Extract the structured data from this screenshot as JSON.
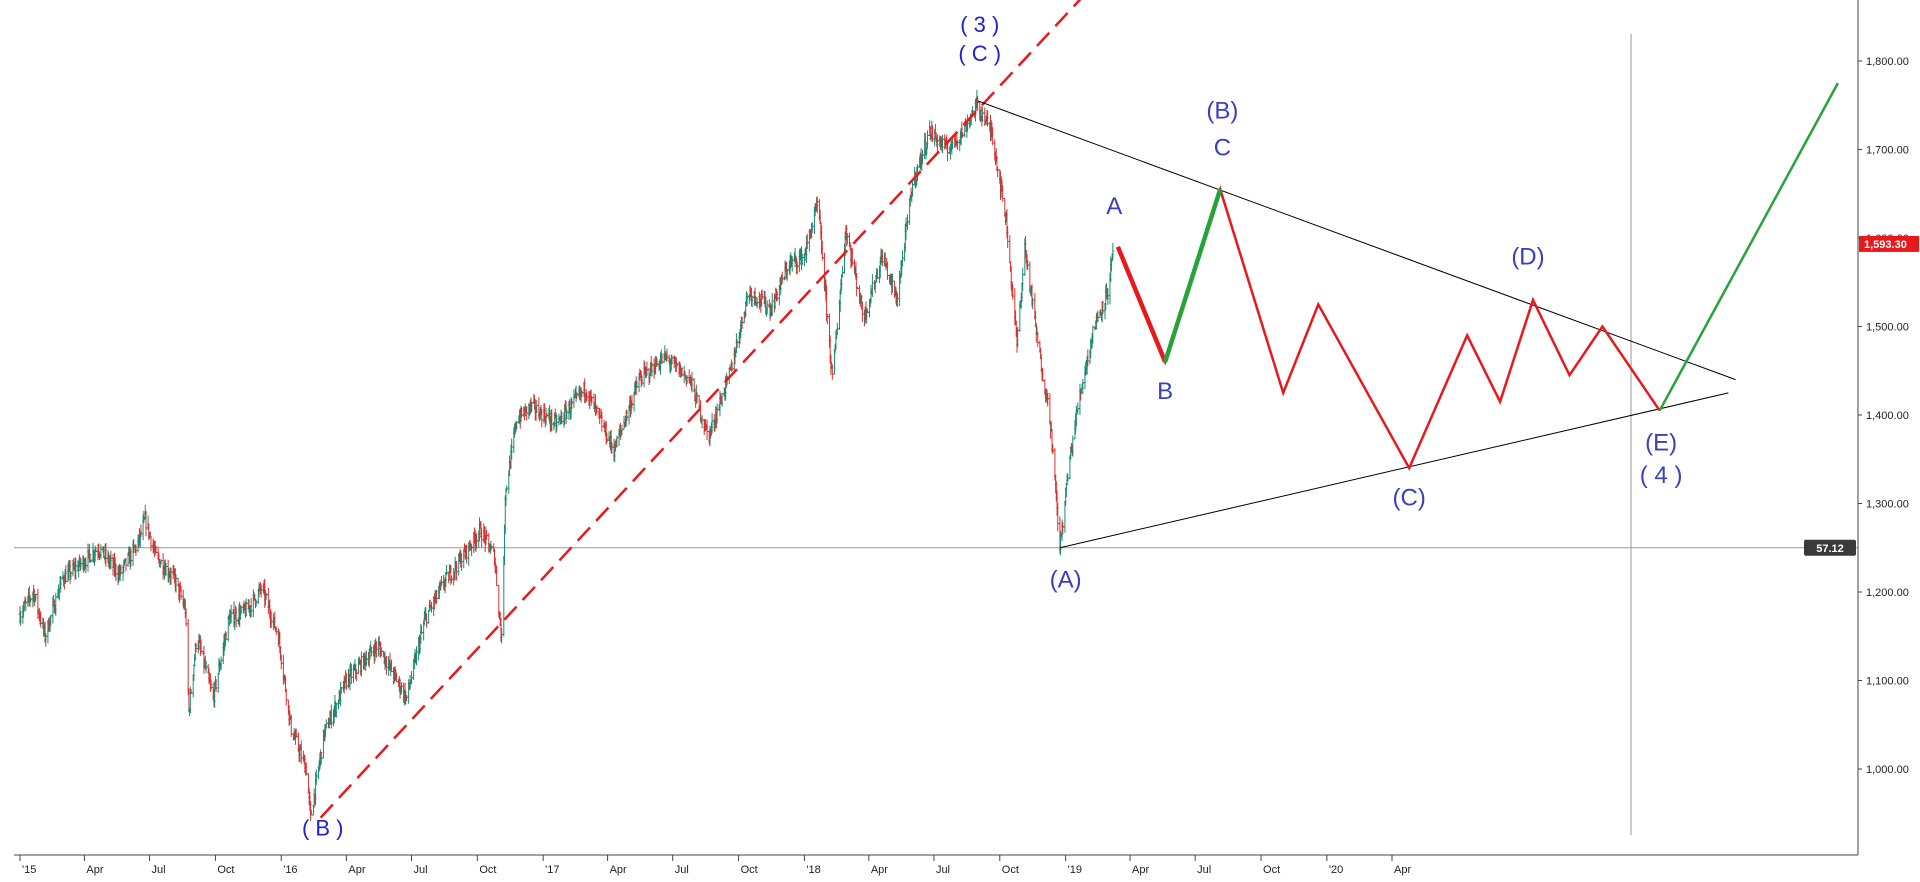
{
  "chart_data": {
    "type": "line",
    "instrument_style": "ohlc-bars",
    "x_range": [
      "2015-01-01",
      "2020-10-31"
    ],
    "ylim": [
      910,
      1900
    ],
    "grid": false,
    "colors": {
      "up": "#1a8a6f",
      "down": "#d93030",
      "forecast_down": "#e8191c",
      "forecast_up": "#27a33a",
      "trendline": "#000000",
      "support": "#e8191c",
      "badge_price": "#e8191c",
      "badge_level": "#3a3a3a",
      "labels": "#3b3fbf"
    },
    "y_ticks": [
      {
        "value": 1000,
        "label": "1,000.00"
      },
      {
        "value": 1100,
        "label": "1,100.00"
      },
      {
        "value": 1200,
        "label": "1,200.00"
      },
      {
        "value": 1300,
        "label": "1,300.00"
      },
      {
        "value": 1400,
        "label": "1,400.00"
      },
      {
        "value": 1500,
        "label": "1,500.00"
      },
      {
        "value": 1600,
        "label": "1,600.00"
      },
      {
        "value": 1700,
        "label": "1,700.00"
      },
      {
        "value": 1800,
        "label": "1,800.00"
      }
    ],
    "x_ticks": [
      {
        "date": "2015-01-01",
        "label": "'15"
      },
      {
        "date": "2015-04-01",
        "label": "Apr"
      },
      {
        "date": "2015-07-01",
        "label": "Jul"
      },
      {
        "date": "2015-10-01",
        "label": "Oct"
      },
      {
        "date": "2016-01-01",
        "label": "'16"
      },
      {
        "date": "2016-04-01",
        "label": "Apr"
      },
      {
        "date": "2016-07-01",
        "label": "Jul"
      },
      {
        "date": "2016-10-01",
        "label": "Oct"
      },
      {
        "date": "2017-01-01",
        "label": "'17"
      },
      {
        "date": "2017-04-01",
        "label": "Apr"
      },
      {
        "date": "2017-07-01",
        "label": "Jul"
      },
      {
        "date": "2017-10-01",
        "label": "Oct"
      },
      {
        "date": "2018-01-01",
        "label": "'18"
      },
      {
        "date": "2018-04-01",
        "label": "Apr"
      },
      {
        "date": "2018-07-01",
        "label": "Jul"
      },
      {
        "date": "2018-10-01",
        "label": "Oct"
      },
      {
        "date": "2019-01-01",
        "label": "'19"
      },
      {
        "date": "2019-04-01",
        "label": "Apr"
      },
      {
        "date": "2019-07-01",
        "label": "Jul"
      },
      {
        "date": "2019-10-01",
        "label": "Oct"
      },
      {
        "date": "2020-01-01",
        "label": "'20"
      },
      {
        "date": "2020-04-01",
        "label": "Apr"
      }
    ],
    "price_path": [
      {
        "x": "2015-01-01",
        "y": 1175
      },
      {
        "x": "2015-01-20",
        "y": 1200
      },
      {
        "x": "2015-02-05",
        "y": 1150
      },
      {
        "x": "2015-03-01",
        "y": 1215
      },
      {
        "x": "2015-04-01",
        "y": 1235
      },
      {
        "x": "2015-04-20",
        "y": 1250
      },
      {
        "x": "2015-05-20",
        "y": 1220
      },
      {
        "x": "2015-06-15",
        "y": 1255
      },
      {
        "x": "2015-06-25",
        "y": 1282
      },
      {
        "x": "2015-07-10",
        "y": 1240
      },
      {
        "x": "2015-08-05",
        "y": 1215
      },
      {
        "x": "2015-08-20",
        "y": 1180
      },
      {
        "x": "2015-08-25",
        "y": 1065
      },
      {
        "x": "2015-09-05",
        "y": 1150
      },
      {
        "x": "2015-09-28",
        "y": 1080
      },
      {
        "x": "2015-10-20",
        "y": 1170
      },
      {
        "x": "2015-11-15",
        "y": 1180
      },
      {
        "x": "2015-12-05",
        "y": 1205
      },
      {
        "x": "2015-12-28",
        "y": 1150
      },
      {
        "x": "2016-01-15",
        "y": 1045
      },
      {
        "x": "2016-02-05",
        "y": 1000
      },
      {
        "x": "2016-02-11",
        "y": 945
      },
      {
        "x": "2016-03-01",
        "y": 1040
      },
      {
        "x": "2016-04-01",
        "y": 1100
      },
      {
        "x": "2016-05-15",
        "y": 1140
      },
      {
        "x": "2016-06-24",
        "y": 1080
      },
      {
        "x": "2016-07-20",
        "y": 1170
      },
      {
        "x": "2016-08-15",
        "y": 1210
      },
      {
        "x": "2016-09-15",
        "y": 1245
      },
      {
        "x": "2016-10-05",
        "y": 1270
      },
      {
        "x": "2016-10-25",
        "y": 1240
      },
      {
        "x": "2016-11-04",
        "y": 1145
      },
      {
        "x": "2016-11-09",
        "y": 1310
      },
      {
        "x": "2016-11-25",
        "y": 1395
      },
      {
        "x": "2016-12-15",
        "y": 1410
      },
      {
        "x": "2017-01-20",
        "y": 1390
      },
      {
        "x": "2017-03-01",
        "y": 1430
      },
      {
        "x": "2017-04-10",
        "y": 1360
      },
      {
        "x": "2017-05-15",
        "y": 1440
      },
      {
        "x": "2017-06-20",
        "y": 1465
      },
      {
        "x": "2017-07-25",
        "y": 1440
      },
      {
        "x": "2017-08-20",
        "y": 1375
      },
      {
        "x": "2017-09-20",
        "y": 1450
      },
      {
        "x": "2017-10-15",
        "y": 1540
      },
      {
        "x": "2017-11-15",
        "y": 1520
      },
      {
        "x": "2017-12-10",
        "y": 1570
      },
      {
        "x": "2018-01-01",
        "y": 1580
      },
      {
        "x": "2018-01-20",
        "y": 1640
      },
      {
        "x": "2018-02-09",
        "y": 1440
      },
      {
        "x": "2018-02-28",
        "y": 1610
      },
      {
        "x": "2018-03-25",
        "y": 1510
      },
      {
        "x": "2018-04-20",
        "y": 1580
      },
      {
        "x": "2018-05-10",
        "y": 1530
      },
      {
        "x": "2018-06-01",
        "y": 1660
      },
      {
        "x": "2018-06-25",
        "y": 1720
      },
      {
        "x": "2018-07-20",
        "y": 1700
      },
      {
        "x": "2018-08-10",
        "y": 1720
      },
      {
        "x": "2018-08-30",
        "y": 1750
      },
      {
        "x": "2018-09-20",
        "y": 1720
      },
      {
        "x": "2018-10-10",
        "y": 1620
      },
      {
        "x": "2018-10-25",
        "y": 1480
      },
      {
        "x": "2018-11-05",
        "y": 1590
      },
      {
        "x": "2018-11-25",
        "y": 1470
      },
      {
        "x": "2018-12-10",
        "y": 1400
      },
      {
        "x": "2018-12-24",
        "y": 1250
      },
      {
        "x": "2019-01-05",
        "y": 1340
      },
      {
        "x": "2019-01-20",
        "y": 1420
      },
      {
        "x": "2019-02-10",
        "y": 1500
      },
      {
        "x": "2019-03-01",
        "y": 1540
      },
      {
        "x": "2019-03-10",
        "y": 1593.3
      }
    ],
    "wave_forecast": [
      {
        "x": "2019-03-15",
        "y": 1590
      },
      {
        "x": "2019-05-20",
        "y": 1460
      },
      {
        "x": "2019-08-05",
        "y": 1655
      },
      {
        "x": "2019-11-01",
        "y": 1425
      },
      {
        "x": "2019-12-20",
        "y": 1525
      },
      {
        "x": "2020-04-25",
        "y": 1340
      },
      {
        "x": "2020-07-15",
        "y": 1490
      },
      {
        "x": "2020-08-30",
        "y": 1415
      },
      {
        "x": "2020-10-15",
        "y": 1530
      },
      {
        "x": "2020-12-05",
        "y": 1445
      },
      {
        "x": "2021-01-20",
        "y": 1500
      },
      {
        "x": "2021-04-10",
        "y": 1405
      }
    ],
    "forecast_up_legs": [
      [
        {
          "x": "2019-05-20",
          "y": 1460
        },
        {
          "x": "2019-08-05",
          "y": 1655
        }
      ],
      [
        {
          "x": "2021-04-10",
          "y": 1405
        },
        {
          "x": "2021-12-15",
          "y": 1775
        }
      ]
    ],
    "forecast_down_bold_leg": [
      {
        "x": "2019-03-15",
        "y": 1590
      },
      {
        "x": "2019-05-20",
        "y": 1460
      }
    ],
    "triangle_upper": [
      {
        "x": "2018-08-31",
        "y": 1755
      },
      {
        "x": "2021-07-25",
        "y": 1440
      }
    ],
    "triangle_lower": [
      {
        "x": "2018-12-24",
        "y": 1250
      },
      {
        "x": "2021-07-15",
        "y": 1425
      }
    ],
    "support_line": [
      {
        "x": "2016-02-25",
        "y": 945
      },
      {
        "x": "2019-06-20",
        "y": 2000
      }
    ],
    "horizontal_level": 1250,
    "vertical_marker": "2021-03-01",
    "price_badge": {
      "value": 1593.3,
      "label": "1,593.30"
    },
    "level_badge": {
      "value": 1250,
      "label": "57.12"
    },
    "annotations": [
      {
        "text": "( 3 )",
        "x": "2018-09-03",
        "y": 1833,
        "style": "top"
      },
      {
        "text": "( C )",
        "x": "2018-09-03",
        "y": 1800,
        "style": "top"
      },
      {
        "text": "( B )",
        "x": "2016-02-28",
        "y": 925,
        "style": "top"
      },
      {
        "text": "(A)",
        "x": "2019-01-01",
        "y": 1205,
        "style": "wave"
      },
      {
        "text": "A",
        "x": "2019-03-10",
        "y": 1627,
        "style": "wave"
      },
      {
        "text": "B",
        "x": "2019-05-20",
        "y": 1418,
        "style": "wave"
      },
      {
        "text": "C",
        "x": "2019-08-08",
        "y": 1693,
        "style": "wave"
      },
      {
        "text": "(B)",
        "x": "2019-08-08",
        "y": 1735,
        "style": "wave"
      },
      {
        "text": "(C)",
        "x": "2020-04-25",
        "y": 1298,
        "style": "wave"
      },
      {
        "text": "(D)",
        "x": "2020-10-08",
        "y": 1570,
        "style": "wave"
      },
      {
        "text": "(E)",
        "x": "2021-04-12",
        "y": 1360,
        "style": "wave"
      },
      {
        "text": "( 4 )",
        "x": "2021-04-12",
        "y": 1323,
        "style": "wave"
      }
    ]
  }
}
